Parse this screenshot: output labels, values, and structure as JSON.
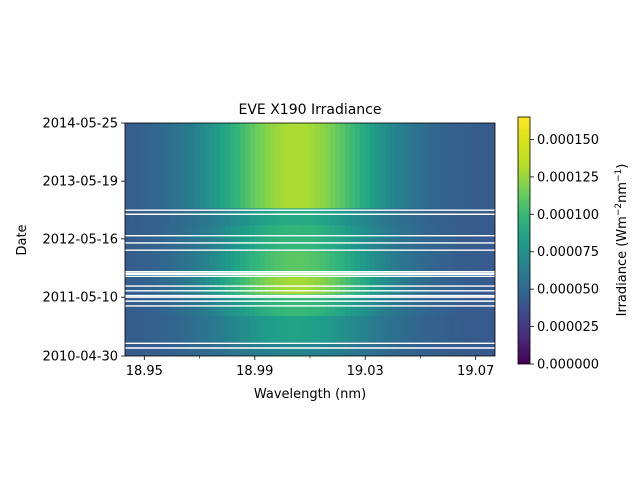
{
  "chart_data": {
    "type": "heatmap",
    "title": "EVE X190 Irradiance",
    "xlabel": "Wavelength (nm)",
    "ylabel": "Date",
    "colorbar_label": "Irradiance (Wm",
    "colorbar_label_exp1": "−2",
    "colorbar_label_mid": "nm",
    "colorbar_label_exp2": "−1",
    "colorbar_label_end": ")",
    "colormap": "viridis",
    "xlim": [
      18.943,
      19.077
    ],
    "x_ticks": [
      18.95,
      18.99,
      19.03,
      19.07
    ],
    "x_tick_labels": [
      "18.95",
      "18.99",
      "19.03",
      "19.07"
    ],
    "x_minor_ticks": [
      18.97,
      19.01,
      19.05
    ],
    "ylim": [
      "2010-04-30",
      "2014-05-25"
    ],
    "y_tick_labels": [
      "2010-04-30",
      "2011-05-10",
      "2012-05-16",
      "2013-05-19",
      "2014-05-25"
    ],
    "y_tick_positions_days": [
      0,
      375,
      747,
      1115,
      1486
    ],
    "clim": [
      0,
      0.000165
    ],
    "colorbar_ticks": [
      0,
      2.5e-05,
      5e-05,
      7.5e-05,
      0.0001,
      0.000125,
      0.00015
    ],
    "colorbar_tick_labels": [
      "0.000000",
      "0.000025",
      "0.000050",
      "0.000075",
      "0.000100",
      "0.000125",
      "0.000150"
    ],
    "line_center_nm": 19.005,
    "background_irradiance": 4.2e-05,
    "irradiance_profile_by_period": [
      {
        "from": "2010-04-30",
        "to": "2010-08-01",
        "peak_irradiance": 6.8e-05
      },
      {
        "from": "2010-08-01",
        "to": "2011-01-15",
        "peak_irradiance": 8.5e-05
      },
      {
        "from": "2011-01-15",
        "to": "2011-06-01",
        "peak_irradiance": 0.0001
      },
      {
        "from": "2011-06-01",
        "to": "2011-10-01",
        "peak_irradiance": 0.000128
      },
      {
        "from": "2011-10-01",
        "to": "2012-03-01",
        "peak_irradiance": 0.00011
      },
      {
        "from": "2012-03-01",
        "to": "2012-08-15",
        "peak_irradiance": 9.8e-05
      },
      {
        "from": "2012-08-15",
        "to": "2012-12-01",
        "peak_irradiance": 9e-05
      },
      {
        "from": "2012-12-01",
        "to": "2014-05-25",
        "peak_irradiance": 0.00013
      }
    ],
    "data_gaps": [
      "2010-06-20",
      "2010-07-20",
      "2011-03-15",
      "2011-04-15",
      "2011-05-10",
      "2011-05-20",
      "2011-06-20",
      "2011-07-20",
      "2011-09-20",
      "2011-10-03",
      "2011-10-09",
      "2011-10-20",
      "2012-03-05",
      "2012-04-20",
      "2012-06-05",
      "2012-10-20",
      "2012-11-15"
    ]
  }
}
